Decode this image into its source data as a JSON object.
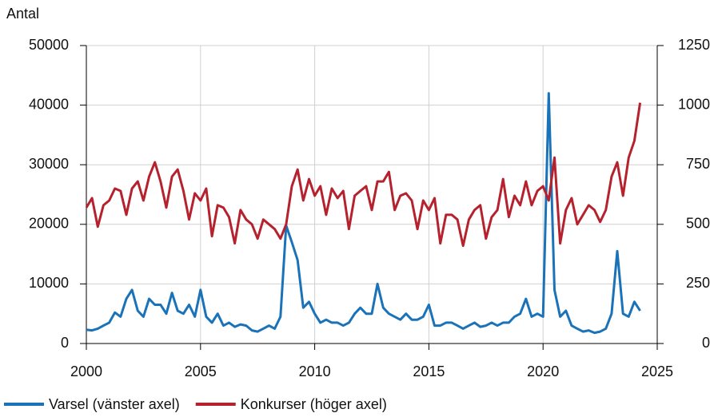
{
  "chart_data": {
    "type": "line",
    "y_label": "Antal",
    "x": [
      2000,
      2000.25,
      2000.5,
      2000.75,
      2001,
      2001.25,
      2001.5,
      2001.75,
      2002,
      2002.25,
      2002.5,
      2002.75,
      2003,
      2003.25,
      2003.5,
      2003.75,
      2004,
      2004.25,
      2004.5,
      2004.75,
      2005,
      2005.25,
      2005.5,
      2005.75,
      2006,
      2006.25,
      2006.5,
      2006.75,
      2007,
      2007.25,
      2007.5,
      2007.75,
      2008,
      2008.25,
      2008.5,
      2008.75,
      2009,
      2009.25,
      2009.5,
      2009.75,
      2010,
      2010.25,
      2010.5,
      2010.75,
      2011,
      2011.25,
      2011.5,
      2011.75,
      2012,
      2012.25,
      2012.5,
      2012.75,
      2013,
      2013.25,
      2013.5,
      2013.75,
      2014,
      2014.25,
      2014.5,
      2014.75,
      2015,
      2015.25,
      2015.5,
      2015.75,
      2016,
      2016.25,
      2016.5,
      2016.75,
      2017,
      2017.25,
      2017.5,
      2017.75,
      2018,
      2018.25,
      2018.5,
      2018.75,
      2019,
      2019.25,
      2019.5,
      2019.75,
      2020,
      2020.25,
      2020.5,
      2020.75,
      2021,
      2021.25,
      2021.5,
      2021.75,
      2022,
      2022.25,
      2022.5,
      2022.75,
      2023,
      2023.25,
      2023.5,
      2023.75,
      2024,
      2024.25
    ],
    "series": [
      {
        "name": "Varsel (vänster axel)",
        "color": "#1a72b8",
        "axis": "y",
        "values": [
          2300,
          2200,
          2500,
          3000,
          3500,
          5200,
          4500,
          7500,
          9000,
          5500,
          4500,
          7500,
          6500,
          6500,
          5000,
          8500,
          5500,
          5000,
          6500,
          4500,
          9000,
          4500,
          3500,
          5000,
          3000,
          3500,
          2800,
          3200,
          3000,
          2200,
          2000,
          2500,
          3000,
          2500,
          4500,
          19800,
          17000,
          14000,
          6000,
          7000,
          5000,
          3500,
          4000,
          3500,
          3500,
          3000,
          3500,
          5000,
          6000,
          5000,
          5000,
          10000,
          6000,
          5000,
          4500,
          4000,
          5000,
          4000,
          4000,
          4500,
          6500,
          3000,
          3000,
          3500,
          3500,
          3000,
          2500,
          3000,
          3500,
          2800,
          3000,
          3500,
          3000,
          3500,
          3500,
          4500,
          5000,
          7500,
          4500,
          5000,
          4500,
          42000,
          9000,
          4500,
          5500,
          3000,
          2500,
          2000,
          2200,
          1800,
          2000,
          2500,
          5000,
          15500,
          5000,
          4500,
          7000,
          5500
        ]
      },
      {
        "name": "Konkurser (höger axel)",
        "color": "#b5222e",
        "axis": "y2",
        "values": [
          570,
          610,
          490,
          580,
          600,
          650,
          640,
          540,
          650,
          680,
          600,
          700,
          760,
          680,
          570,
          700,
          730,
          640,
          520,
          630,
          600,
          650,
          450,
          580,
          570,
          530,
          420,
          560,
          520,
          500,
          440,
          520,
          500,
          480,
          440,
          500,
          660,
          730,
          600,
          690,
          620,
          660,
          540,
          650,
          610,
          640,
          480,
          620,
          640,
          660,
          560,
          680,
          680,
          720,
          560,
          620,
          630,
          600,
          480,
          600,
          560,
          610,
          420,
          540,
          540,
          520,
          410,
          520,
          560,
          580,
          440,
          530,
          560,
          690,
          530,
          620,
          580,
          680,
          580,
          640,
          660,
          600,
          780,
          420,
          560,
          610,
          500,
          540,
          580,
          560,
          510,
          560,
          700,
          760,
          620,
          780,
          850,
          1010
        ]
      }
    ],
    "xlim": [
      2000,
      2025
    ],
    "xticks": [
      2000,
      2005,
      2010,
      2015,
      2020,
      2025
    ],
    "ylim": [
      0,
      50000
    ],
    "yticks": [
      0,
      10000,
      20000,
      30000,
      40000,
      50000
    ],
    "y2lim": [
      0,
      1250
    ],
    "y2ticks": [
      0,
      250,
      500,
      750,
      1000,
      1250
    ],
    "grid": true,
    "legend": "bottom"
  }
}
